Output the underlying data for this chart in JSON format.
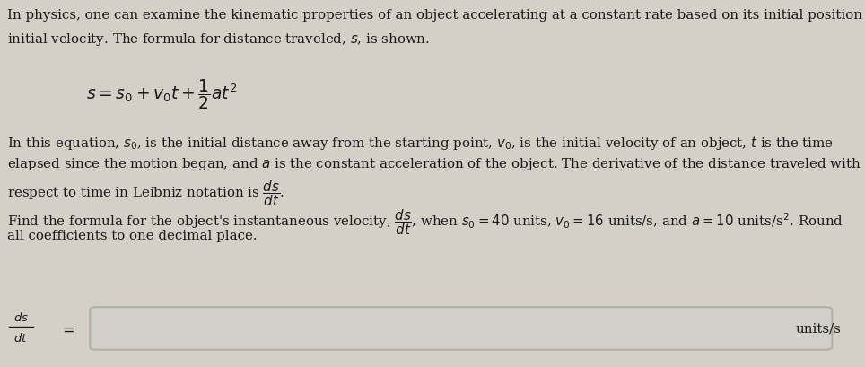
{
  "background_color": "#d4d0c8",
  "text_color": "#1a1a1a",
  "title_line1": "In physics, one can examine the kinematic properties of an object accelerating at a constant rate based on its initial position and",
  "title_line2": "initial velocity. The formula for distance traveled, $s$, is shown.",
  "formula": "$s = s_0 + v_0t + \\dfrac{1}{2}at^2$",
  "body_line1": "In this equation, $s_0$, is the initial distance away from the starting point, $v_0$, is the initial velocity of an object, $t$ is the time",
  "body_line2": "elapsed since the motion began, and $a$ is the constant acceleration of the object. The derivative of the distance traveled with",
  "body_line3": "respect to time in Leibniz notation is $\\dfrac{ds}{dt}$.",
  "question_line1": "Find the formula for the object's instantaneous velocity, $\\dfrac{ds}{dt}$, when $s_0 = 40$ units, $v_0 = 16$ units/s, and $a = 10$ units/s$^2$. Round",
  "question_line2": "all coefficients to one decimal place.",
  "label_left_top": "$ds$",
  "label_left_bot": "$dt$",
  "label_equals": "$=$",
  "label_right": "units/s",
  "font_size_body": 10.8,
  "font_size_formula": 13.5,
  "box_color": "#c8c8c0",
  "box_edge_color": "#aaaaaa"
}
